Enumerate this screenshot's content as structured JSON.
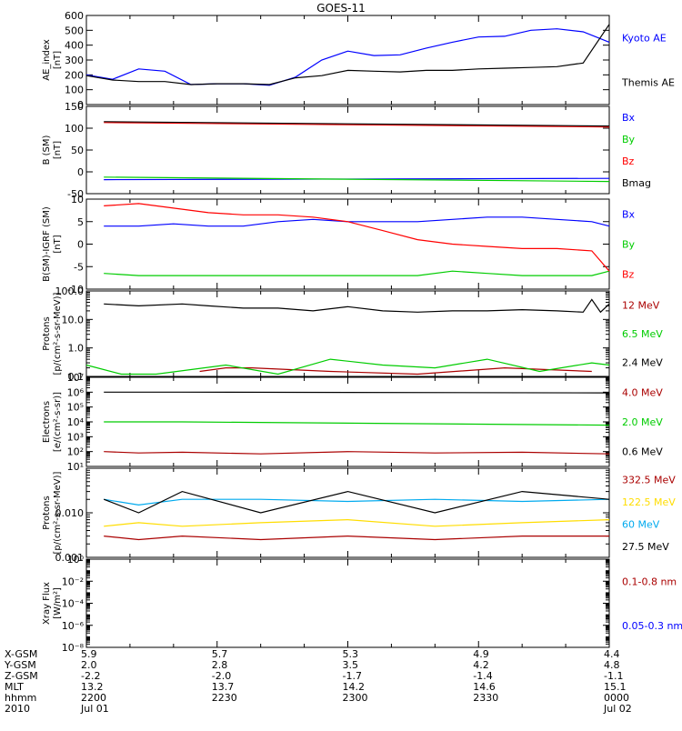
{
  "title": "GOES-11",
  "colors": {
    "black": "#000000",
    "blue": "#0000ff",
    "green": "#00cc00",
    "red": "#ff0000",
    "darkred": "#aa0000",
    "cyan": "#00aaee",
    "yellow": "#ffdd00"
  },
  "chart_data": [
    {
      "type": "line",
      "ylabel_lines": [
        "AE_index",
        "[nT]"
      ],
      "ylim": [
        0,
        600
      ],
      "yticks": [
        "0",
        "100",
        "200",
        "300",
        "400",
        "500",
        "600"
      ],
      "ytick_values": [
        0,
        100,
        200,
        300,
        400,
        500,
        600
      ],
      "series": [
        {
          "name": "Kyoto AE",
          "color": "#0000ff",
          "x": [
            0,
            3,
            6,
            9,
            12,
            15,
            18,
            21,
            24,
            27,
            30,
            33,
            36,
            39,
            42,
            45,
            48,
            51,
            54,
            57,
            60
          ],
          "values": [
            200,
            170,
            240,
            225,
            135,
            140,
            140,
            130,
            185,
            300,
            360,
            330,
            335,
            380,
            420,
            455,
            460,
            500,
            510,
            490,
            420
          ]
        },
        {
          "name": "Themis AE",
          "color": "#000000",
          "x": [
            0,
            3,
            6,
            9,
            12,
            15,
            18,
            21,
            24,
            27,
            30,
            33,
            36,
            39,
            42,
            45,
            48,
            51,
            54,
            57,
            60
          ],
          "values": [
            195,
            165,
            155,
            155,
            135,
            140,
            140,
            135,
            180,
            195,
            230,
            225,
            220,
            230,
            230,
            240,
            245,
            250,
            255,
            280,
            540
          ]
        }
      ]
    },
    {
      "type": "line",
      "ylabel_lines": [
        "B (SM)",
        "[nT]"
      ],
      "ylim": [
        -50,
        150
      ],
      "yticks": [
        "-50",
        "0",
        "50",
        "100",
        "150"
      ],
      "ytick_values": [
        -50,
        0,
        50,
        100,
        150
      ],
      "series": [
        {
          "name": "Bx",
          "color": "#0000ff",
          "x": [
            2,
            60
          ],
          "values": [
            -18,
            -15
          ]
        },
        {
          "name": "By",
          "color": "#00cc00",
          "x": [
            2,
            60
          ],
          "values": [
            -12,
            -22
          ]
        },
        {
          "name": "Bz",
          "color": "#ff0000",
          "x": [
            2,
            30,
            60
          ],
          "values": [
            113,
            108,
            103
          ]
        },
        {
          "name": "Bmag",
          "color": "#000000",
          "x": [
            2,
            30,
            60
          ],
          "values": [
            115,
            110,
            105
          ]
        }
      ]
    },
    {
      "type": "line",
      "ylabel_lines": [
        "B(SM)-IGRF (SM)",
        "[nT]"
      ],
      "ylim": [
        -10,
        10
      ],
      "yticks": [
        "-10",
        "-5",
        "0",
        "5",
        "10"
      ],
      "ytick_values": [
        -10,
        -5,
        0,
        5,
        10
      ],
      "series": [
        {
          "name": "Bx",
          "color": "#0000ff",
          "x": [
            2,
            6,
            10,
            14,
            18,
            22,
            26,
            30,
            34,
            38,
            42,
            46,
            50,
            54,
            58,
            60
          ],
          "values": [
            4,
            4,
            4.5,
            4,
            4,
            5,
            5.5,
            5,
            5,
            5,
            5.5,
            6,
            6,
            5.5,
            5,
            4
          ]
        },
        {
          "name": "By",
          "color": "#00cc00",
          "x": [
            2,
            6,
            10,
            14,
            18,
            22,
            26,
            30,
            34,
            38,
            42,
            46,
            50,
            54,
            58,
            60
          ],
          "values": [
            -6.5,
            -7,
            -7,
            -7,
            -7,
            -7,
            -7,
            -7,
            -7,
            -7,
            -6,
            -6.5,
            -7,
            -7,
            -7,
            -6
          ]
        },
        {
          "name": "Bz",
          "color": "#ff0000",
          "x": [
            2,
            6,
            10,
            14,
            18,
            22,
            26,
            30,
            34,
            38,
            42,
            46,
            50,
            54,
            58,
            60
          ],
          "values": [
            8.5,
            9,
            8,
            7,
            6.5,
            6.5,
            6,
            5,
            3,
            1,
            0,
            -0.5,
            -1,
            -1,
            -1.5,
            -6
          ]
        }
      ]
    },
    {
      "type": "line",
      "ylabel_lines": [
        "Protons",
        "[p/(cm²-s-sr-MeV)]"
      ],
      "log": true,
      "ylim": [
        0.1,
        100
      ],
      "yticks": [
        "0.1",
        "1.0",
        "10.0",
        "100.0"
      ],
      "ytick_values": [
        0.1,
        1,
        10,
        100
      ],
      "series": [
        {
          "name": "12 MeV",
          "color": "#aa0000",
          "x": [
            13,
            16,
            19,
            28,
            38,
            48,
            58
          ],
          "values": [
            0.15,
            0.2,
            0.2,
            0.15,
            0.12,
            0.2,
            0.15
          ]
        },
        {
          "name": "6.5 MeV",
          "color": "#00cc00",
          "x": [
            0,
            4,
            8,
            16,
            22,
            28,
            34,
            40,
            46,
            52,
            58,
            60
          ],
          "values": [
            0.25,
            0.12,
            0.12,
            0.25,
            0.12,
            0.4,
            0.25,
            0.2,
            0.4,
            0.15,
            0.3,
            0.25
          ]
        },
        {
          "name": "2.4 MeV",
          "color": "#000000",
          "x": [
            2,
            6,
            11,
            14,
            18,
            22,
            26,
            30,
            34,
            38,
            42,
            46,
            50,
            54,
            57,
            58,
            59,
            60
          ],
          "values": [
            35,
            30,
            35,
            30,
            25,
            25,
            20,
            28,
            20,
            18,
            20,
            20,
            22,
            20,
            18,
            50,
            18,
            35
          ]
        }
      ]
    },
    {
      "type": "line",
      "ylabel_lines": [
        "Electrons",
        "[e/(cm²-s-sr)]"
      ],
      "log": true,
      "ylim": [
        10,
        10000000
      ],
      "yticks": [
        "10¹",
        "10²",
        "10³",
        "10⁴",
        "10⁵",
        "10⁶",
        "10⁷"
      ],
      "ytick_values": [
        10,
        100,
        1000,
        10000,
        100000,
        1000000,
        10000000
      ],
      "series": [
        {
          "name": "4.0 MeV",
          "color": "#aa0000",
          "x": [
            2,
            6,
            11,
            20,
            30,
            40,
            50,
            60
          ],
          "values": [
            100,
            80,
            90,
            70,
            100,
            80,
            90,
            70
          ]
        },
        {
          "name": "2.0 MeV",
          "color": "#00cc00",
          "x": [
            2,
            6,
            11,
            60
          ],
          "values": [
            10000,
            10000,
            10000,
            6000
          ]
        },
        {
          "name": "0.6 MeV",
          "color": "#000000",
          "x": [
            2,
            6,
            11,
            60
          ],
          "values": [
            1000000,
            1000000,
            1000000,
            900000
          ]
        }
      ]
    },
    {
      "type": "line",
      "ylabel_lines": [
        "Protons",
        "[p/(cm²-s-sr-MeV)]"
      ],
      "log": true,
      "ylim": [
        0.001,
        0.1
      ],
      "yticks": [
        "0.001",
        "0.010"
      ],
      "ytick_values": [
        0.001,
        0.01
      ],
      "series": [
        {
          "name": "332.5 MeV",
          "color": "#aa0000",
          "x": [
            2,
            6,
            11,
            20,
            30,
            40,
            50,
            60
          ],
          "values": [
            0.003,
            0.0025,
            0.003,
            0.0025,
            0.003,
            0.0025,
            0.003,
            0.003
          ]
        },
        {
          "name": "122.5 MeV",
          "color": "#ffdd00",
          "x": [
            2,
            6,
            11,
            20,
            30,
            40,
            50,
            60
          ],
          "values": [
            0.005,
            0.006,
            0.005,
            0.006,
            0.007,
            0.005,
            0.006,
            0.007
          ]
        },
        {
          "name": "60 MeV",
          "color": "#00aaee",
          "x": [
            2,
            6,
            11,
            20,
            30,
            40,
            50,
            60
          ],
          "values": [
            0.02,
            0.015,
            0.02,
            0.02,
            0.018,
            0.02,
            0.018,
            0.02
          ]
        },
        {
          "name": "27.5 MeV",
          "color": "#000000",
          "x": [
            2,
            6,
            11,
            20,
            30,
            40,
            50,
            60
          ],
          "values": [
            0.02,
            0.01,
            0.03,
            0.01,
            0.03,
            0.01,
            0.03,
            0.02
          ]
        }
      ]
    },
    {
      "type": "line",
      "ylabel_lines": [
        "Xray Flux",
        "[W/m²]"
      ],
      "log": true,
      "ylim": [
        1e-08,
        1
      ],
      "yticks": [
        "10⁻⁸",
        "10⁻⁶",
        "10⁻⁴",
        "10⁻²",
        "10⁰"
      ],
      "ytick_values": [
        1e-08,
        1e-06,
        0.0001,
        0.01,
        1
      ],
      "series": [
        {
          "name": "0.1-0.8 nm",
          "color": "#aa0000",
          "x": [],
          "values": []
        },
        {
          "name": "0.05-0.3 nm",
          "color": "#0000ff",
          "x": [],
          "values": []
        }
      ]
    }
  ],
  "xlim": [
    0,
    60
  ],
  "footer": {
    "row_labels": [
      "X-GSM",
      "Y-GSM",
      "Z-GSM",
      "MLT",
      "hhmm",
      "2010"
    ],
    "columns": [
      {
        "x": 0,
        "values": [
          "5.9",
          "2.0",
          "-2.2",
          "13.2",
          "2200",
          "Jul 01"
        ]
      },
      {
        "x": 15,
        "values": [
          "5.7",
          "2.8",
          "-2.0",
          "13.7",
          "2230",
          ""
        ]
      },
      {
        "x": 30,
        "values": [
          "5.3",
          "3.5",
          "-1.7",
          "14.2",
          "2300",
          ""
        ]
      },
      {
        "x": 45,
        "values": [
          "4.9",
          "4.2",
          "-1.4",
          "14.6",
          "2330",
          ""
        ]
      },
      {
        "x": 60,
        "values": [
          "4.4",
          "4.8",
          "-1.1",
          "15.1",
          "0000",
          "Jul 02"
        ]
      }
    ]
  }
}
